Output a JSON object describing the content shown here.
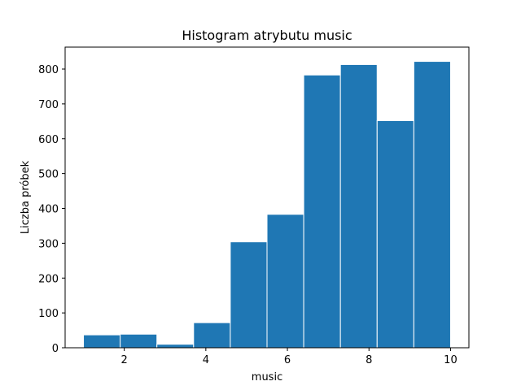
{
  "chart_data": {
    "type": "bar",
    "title": "Histogram atrybutu music",
    "xlabel": "music",
    "ylabel": "Liczba próbek",
    "bin_edges": [
      1,
      1.9,
      2.8,
      3.7,
      4.6,
      5.5,
      6.4,
      7.3,
      8.2,
      9.1,
      10
    ],
    "values": [
      37,
      39,
      10,
      72,
      304,
      383,
      783,
      813,
      652,
      822
    ],
    "xlim": [
      0.55,
      10.45
    ],
    "ylim": [
      0,
      863
    ],
    "xticks": [
      2,
      4,
      6,
      8,
      10
    ],
    "yticks": [
      0,
      100,
      200,
      300,
      400,
      500,
      600,
      700,
      800
    ],
    "grid": false,
    "colors": {
      "bar": "#1f77b4",
      "bar_edge": "#ffffff"
    }
  }
}
